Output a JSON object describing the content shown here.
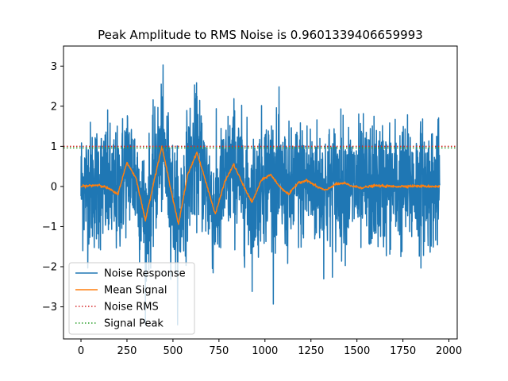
{
  "chart_data": {
    "type": "line",
    "title": "Peak Amplitude to RMS Noise is 0.9601339406659993",
    "xlabel": "",
    "ylabel": "",
    "xlim": [
      -95,
      2045
    ],
    "ylim": [
      -3.8,
      3.5
    ],
    "xticks": [
      0,
      250,
      500,
      750,
      1000,
      1250,
      1500,
      1750,
      2000
    ],
    "yticks": [
      -3,
      -2,
      -1,
      0,
      1,
      2,
      3
    ],
    "grid": false,
    "legend_position": "lower-left",
    "series": [
      {
        "name": "Noise Response",
        "color": "#1f77b4",
        "style": "solid",
        "x_start": 0,
        "x_end": 1950,
        "n_points": 1950,
        "approx_std": 1.0,
        "approx_min": -3.45,
        "approx_max": 3.15
      },
      {
        "name": "Mean Signal",
        "color": "#ff7f0e",
        "style": "solid",
        "x": [
          0,
          50,
          100,
          150,
          200,
          250,
          300,
          350,
          400,
          440,
          490,
          530,
          580,
          630,
          680,
          730,
          780,
          830,
          880,
          930,
          980,
          1030,
          1080,
          1130,
          1180,
          1230,
          1280,
          1330,
          1380,
          1430,
          1480,
          1530,
          1600,
          1700,
          1800,
          1950
        ],
        "y": [
          0.0,
          0.02,
          0.04,
          -0.05,
          -0.2,
          0.6,
          0.2,
          -0.85,
          0.2,
          1.0,
          -0.1,
          -0.95,
          0.3,
          0.85,
          0.1,
          -0.7,
          0.1,
          0.55,
          0.05,
          -0.4,
          0.15,
          0.3,
          0.0,
          -0.2,
          0.1,
          0.15,
          0.0,
          -0.1,
          0.05,
          0.08,
          0.0,
          -0.03,
          0.02,
          0.0,
          0.01,
          0.0
        ]
      },
      {
        "name": "Noise RMS",
        "color": "#d62728",
        "style": "dotted",
        "value": 1.0
      },
      {
        "name": "Signal Peak",
        "color": "#2ca02c",
        "style": "dotted",
        "value": 0.96
      }
    ]
  }
}
